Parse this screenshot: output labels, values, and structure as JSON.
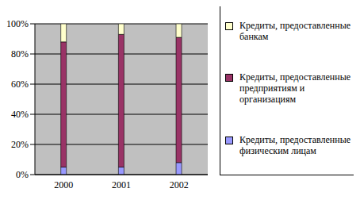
{
  "chart_data": {
    "type": "bar",
    "stacked": true,
    "categories": [
      "2000",
      "2001",
      "2002"
    ],
    "series": [
      {
        "name": "Кредиты, предоставленные физическим лицам",
        "color": "#9999ff",
        "values": [
          5,
          5,
          8
        ]
      },
      {
        "name": "Кредиты, предоставленные предприятиям и организациям",
        "color": "#993366",
        "values": [
          83,
          88,
          83
        ]
      },
      {
        "name": "Кредиты, предоставленные банкам",
        "color": "#ffffcc",
        "values": [
          12,
          7,
          9
        ]
      }
    ],
    "ylim": [
      0,
      100
    ],
    "yticks": [
      {
        "value": 0,
        "label": "0%"
      },
      {
        "value": 20,
        "label": "20%"
      },
      {
        "value": 40,
        "label": "40%"
      },
      {
        "value": 60,
        "label": "60%"
      },
      {
        "value": 80,
        "label": "80%"
      },
      {
        "value": 100,
        "label": "100%"
      }
    ],
    "grid": true,
    "legend": "right"
  }
}
